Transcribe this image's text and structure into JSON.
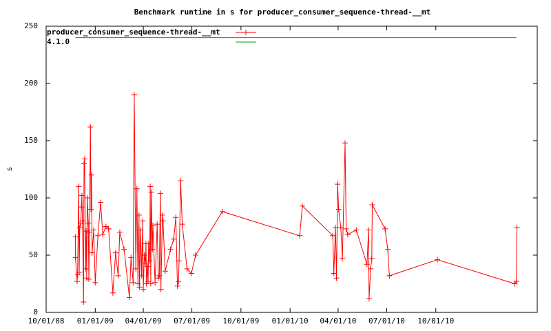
{
  "chart_data": {
    "type": "line",
    "title": "Benchmark runtime in s for producer_consumer_sequence-thread-__mt",
    "y_label": "s",
    "xlim": [
      "10/01/08",
      "04/09/11"
    ],
    "xticks": [
      "10/01/08",
      "01/01/09",
      "04/01/09",
      "07/01/09",
      "10/01/09",
      "01/01/10",
      "04/01/10",
      "07/01/10",
      "10/01/10"
    ],
    "ylim": [
      0,
      250
    ],
    "yticks": [
      0,
      50,
      100,
      150,
      200,
      250
    ],
    "grid": false,
    "legend": "top-left",
    "series": [
      {
        "name": "producer_consumer_sequence-thread-__mt",
        "color": "#ff0000",
        "marker": "plus",
        "x": [
          "11/25/08",
          "11/25/08",
          "11/28/08",
          "11/29/08",
          "12/01/08",
          "12/02/08",
          "12/03/08",
          "12/05/08",
          "12/06/08",
          "12/07/08",
          "12/08/08",
          "12/10/08",
          "12/11/08",
          "12/12/08",
          "12/14/08",
          "12/15/08",
          "12/16/08",
          "12/17/08",
          "12/19/08",
          "12/20/08",
          "12/21/08",
          "12/23/08",
          "12/24/08",
          "12/25/08",
          "12/26/08",
          "12/29/08",
          "01/01/09",
          "01/06/09",
          "01/11/09",
          "01/15/09",
          "01/21/09",
          "01/26/09",
          "02/03/09",
          "02/08/09",
          "02/13/09",
          "02/16/09",
          "02/24/09",
          "03/06/09",
          "03/09/09",
          "03/13/09",
          "03/15/09",
          "03/18/09",
          "03/20/09",
          "03/22/09",
          "03/24/09",
          "03/25/09",
          "03/27/09",
          "03/29/09",
          "03/31/09",
          "04/01/09",
          "04/03/09",
          "04/05/09",
          "04/06/09",
          "04/07/09",
          "04/09/09",
          "04/10/09",
          "04/11/09",
          "04/13/09",
          "04/14/09",
          "04/15/09",
          "04/16/09",
          "04/18/09",
          "04/19/09",
          "04/23/09",
          "04/27/09",
          "04/29/09",
          "05/01/09",
          "05/03/09",
          "05/04/09",
          "05/07/09",
          "05/08/09",
          "05/12/09",
          "05/22/09",
          "05/28/09",
          "06/01/09",
          "06/04/09",
          "06/06/09",
          "06/07/09",
          "06/10/09",
          "06/13/09",
          "06/22/09",
          "06/30/09",
          "07/08/09",
          "08/27/09",
          "01/19/10",
          "01/24/10",
          "03/22/10",
          "03/24/10",
          "03/27/10",
          "03/29/10",
          "03/31/10",
          "04/02/10",
          "04/06/10",
          "04/09/10",
          "04/14/10",
          "04/16/10",
          "04/19/10",
          "05/05/10",
          "05/25/10",
          "05/28/10",
          "05/29/10",
          "06/01/10",
          "06/03/10",
          "06/04/10",
          "06/28/10",
          "07/03/10",
          "07/06/10",
          "10/04/10",
          "02/26/11",
          "03/01/11",
          "03/02/11"
        ],
        "values": [
          66,
          48,
          27,
          33,
          110,
          35,
          74,
          78,
          92,
          102,
          80,
          9,
          130,
          134,
          38,
          71,
          30,
          100,
          78,
          29,
          70,
          162,
          90,
          120,
          52,
          72,
          26,
          67,
          96,
          68,
          75,
          73,
          17,
          52,
          32,
          70,
          55,
          13,
          48,
          26,
          190,
          38,
          108,
          25,
          85,
          22,
          72,
          32,
          80,
          20,
          50,
          43,
          60,
          25,
          40,
          27,
          60,
          45,
          110,
          25,
          105,
          55,
          76,
          26,
          77,
          30,
          32,
          104,
          20,
          85,
          80,
          36,
          55,
          64,
          83,
          23,
          27,
          45,
          115,
          77,
          38,
          34,
          50,
          88,
          67,
          93,
          67,
          34,
          74,
          30,
          112,
          90,
          74,
          47,
          148,
          73,
          68,
          72,
          42,
          72,
          12,
          38,
          47,
          94,
          73,
          55,
          32,
          46,
          25,
          27,
          74
        ]
      },
      {
        "name": "4.1.0",
        "color": "#00a000",
        "marker": "none",
        "x": [
          "11/25/08",
          "03/01/11"
        ],
        "values": [
          240,
          240
        ]
      }
    ]
  }
}
